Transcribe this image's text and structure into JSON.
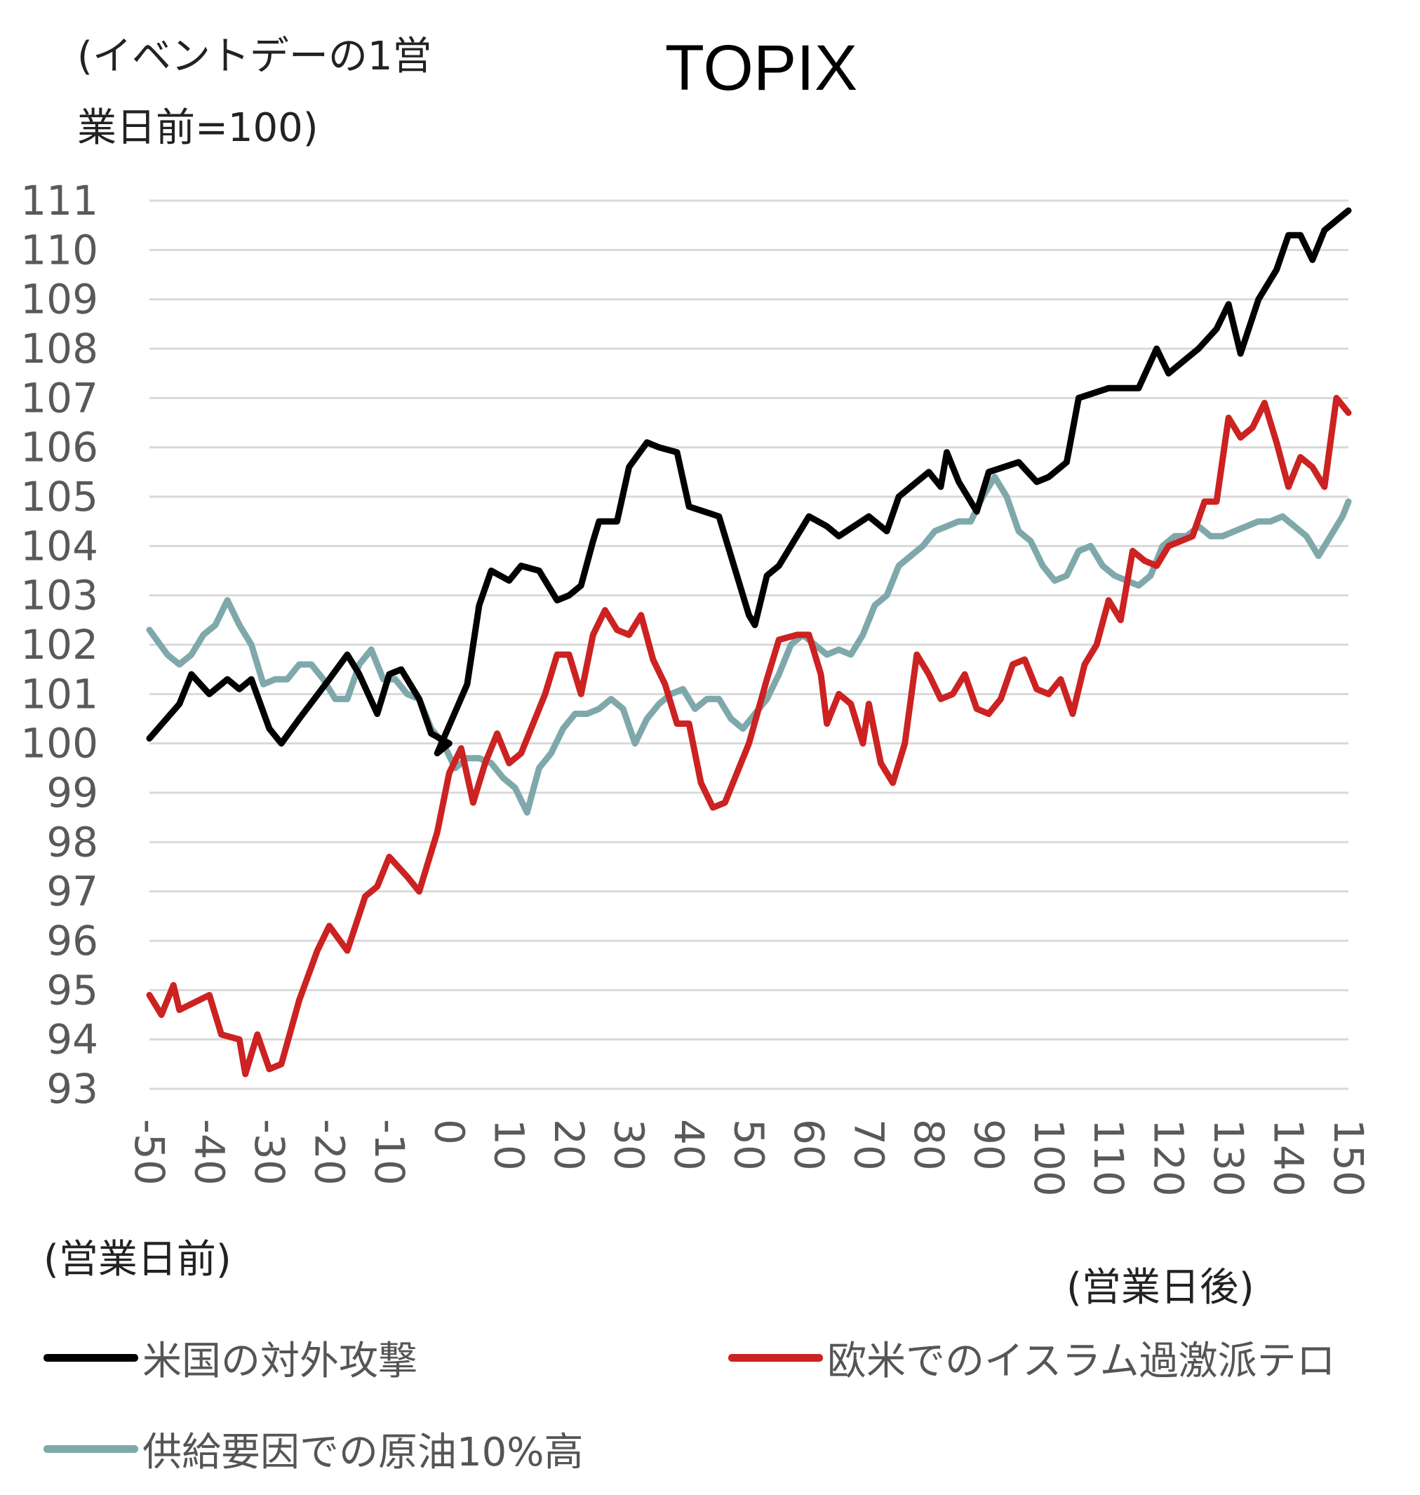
{
  "chart_data": {
    "type": "line",
    "title": "TOPIX",
    "ylabel": "(イベントデーの1営業日前=100)",
    "ylabel_lines": [
      "(イベントデーの1営",
      "業日前=100)"
    ],
    "xlabel_before": "(営業日前)",
    "xlabel_after": "(営業日後)",
    "xlim": [
      -50,
      150
    ],
    "ylim": [
      93,
      111
    ],
    "yticks": [
      111,
      110,
      109,
      108,
      107,
      106,
      105,
      104,
      103,
      102,
      101,
      100,
      99,
      98,
      97,
      96,
      95,
      94,
      93
    ],
    "xticks": [
      -50,
      -40,
      -30,
      -20,
      -10,
      0,
      10,
      20,
      30,
      40,
      50,
      60,
      70,
      80,
      90,
      100,
      110,
      120,
      130,
      140,
      150
    ],
    "grid": true,
    "legend_position": "bottom",
    "series": [
      {
        "name": "米国の対外攻撃",
        "color": "#000000",
        "x": [
          -50,
          -45,
          -43,
          -40,
          -37,
          -35,
          -33,
          -30,
          -28,
          -25,
          -20,
          -17,
          -15,
          -12,
          -10,
          -8,
          -5,
          -3,
          0,
          -2,
          3,
          5,
          7,
          10,
          12,
          15,
          18,
          20,
          22,
          24,
          25,
          28,
          30,
          33,
          35,
          38,
          40,
          45,
          50,
          51,
          53,
          55,
          60,
          63,
          65,
          70,
          73,
          75,
          80,
          82,
          83,
          85,
          88,
          90,
          95,
          98,
          100,
          103,
          105,
          110,
          115,
          118,
          120,
          125,
          128,
          130,
          132,
          135,
          138,
          140,
          142,
          144,
          146,
          150
        ],
        "y": [
          100.1,
          100.8,
          101.4,
          101.0,
          101.3,
          101.1,
          101.3,
          100.3,
          100.0,
          100.5,
          101.3,
          101.8,
          101.4,
          100.6,
          101.4,
          101.5,
          100.9,
          100.2,
          100.0,
          99.8,
          101.2,
          102.8,
          103.5,
          103.3,
          103.6,
          103.5,
          102.9,
          103.0,
          103.2,
          104.1,
          104.5,
          104.5,
          105.6,
          106.1,
          106.0,
          105.9,
          104.8,
          104.6,
          102.6,
          102.4,
          103.4,
          103.6,
          104.6,
          104.4,
          104.2,
          104.6,
          104.3,
          105.0,
          105.5,
          105.2,
          105.9,
          105.3,
          104.7,
          105.5,
          105.7,
          105.3,
          105.4,
          105.7,
          107.0,
          107.2,
          107.2,
          108.0,
          107.5,
          108.0,
          108.4,
          108.9,
          107.9,
          109.0,
          109.6,
          110.3,
          110.3,
          109.8,
          110.4,
          110.8
        ]
      },
      {
        "name": "欧米でのイスラム過激派テロ",
        "color": "#cc2222",
        "x": [
          -50,
          -48,
          -46,
          -45,
          -40,
          -38,
          -35,
          -34,
          -32,
          -30,
          -28,
          -25,
          -22,
          -20,
          -17,
          -14,
          -12,
          -10,
          -7,
          -5,
          -2,
          0,
          2,
          4,
          6,
          8,
          10,
          12,
          14,
          16,
          18,
          20,
          22,
          24,
          26,
          28,
          30,
          32,
          34,
          36,
          38,
          40,
          42,
          44,
          46,
          48,
          50,
          53,
          55,
          58,
          60,
          62,
          63,
          65,
          67,
          69,
          70,
          72,
          74,
          76,
          78,
          80,
          82,
          84,
          86,
          88,
          90,
          92,
          94,
          96,
          98,
          100,
          102,
          104,
          106,
          108,
          110,
          112,
          114,
          116,
          118,
          120,
          122,
          124,
          126,
          128,
          130,
          132,
          134,
          136,
          138,
          140,
          142,
          144,
          146,
          148,
          150
        ],
        "y": [
          94.9,
          94.5,
          95.1,
          94.6,
          94.9,
          94.1,
          94.0,
          93.3,
          94.1,
          93.4,
          93.5,
          94.8,
          95.8,
          96.3,
          95.8,
          96.9,
          97.1,
          97.7,
          97.3,
          97.0,
          98.2,
          99.4,
          99.9,
          98.8,
          99.6,
          100.2,
          99.6,
          99.8,
          100.4,
          101.0,
          101.8,
          101.8,
          101.0,
          102.2,
          102.7,
          102.3,
          102.2,
          102.6,
          101.7,
          101.2,
          100.4,
          100.4,
          99.2,
          98.7,
          98.8,
          99.4,
          100.0,
          101.3,
          102.1,
          102.2,
          102.2,
          101.4,
          100.4,
          101.0,
          100.8,
          100.0,
          100.8,
          99.6,
          99.2,
          100.0,
          101.8,
          101.4,
          100.9,
          101.0,
          101.4,
          100.7,
          100.6,
          100.9,
          101.6,
          101.7,
          101.1,
          101.0,
          101.3,
          100.6,
          101.6,
          102.0,
          102.9,
          102.5,
          103.9,
          103.7,
          103.6,
          104.0,
          104.1,
          104.2,
          104.9,
          104.9,
          106.6,
          106.2,
          106.4,
          106.9,
          106.1,
          105.2,
          105.8,
          105.6,
          105.2,
          107.0,
          106.7
        ]
      },
      {
        "name": "供給要因での原油10%高",
        "color": "#7fa8ab",
        "x": [
          -50,
          -47,
          -45,
          -43,
          -41,
          -39,
          -37,
          -35,
          -33,
          -31,
          -29,
          -27,
          -25,
          -23,
          -21,
          -19,
          -17,
          -15,
          -13,
          -11,
          -9,
          -7,
          -5,
          -3,
          -1,
          1,
          3,
          5,
          7,
          9,
          11,
          13,
          15,
          17,
          19,
          21,
          23,
          25,
          27,
          29,
          31,
          33,
          35,
          37,
          39,
          41,
          43,
          45,
          47,
          49,
          51,
          53,
          55,
          57,
          59,
          61,
          63,
          65,
          67,
          69,
          71,
          73,
          75,
          77,
          79,
          81,
          83,
          85,
          87,
          89,
          91,
          93,
          95,
          97,
          99,
          101,
          103,
          105,
          107,
          109,
          111,
          113,
          115,
          117,
          119,
          121,
          123,
          125,
          127,
          129,
          131,
          133,
          135,
          137,
          139,
          141,
          143,
          145,
          147,
          149,
          150
        ],
        "y": [
          102.3,
          101.8,
          101.6,
          101.8,
          102.2,
          102.4,
          102.9,
          102.4,
          102.0,
          101.2,
          101.3,
          101.3,
          101.6,
          101.6,
          101.3,
          100.9,
          100.9,
          101.6,
          101.9,
          101.3,
          101.3,
          101.0,
          100.9,
          100.3,
          100.0,
          99.5,
          99.7,
          99.7,
          99.6,
          99.3,
          99.1,
          98.6,
          99.5,
          99.8,
          100.3,
          100.6,
          100.6,
          100.7,
          100.9,
          100.7,
          100.0,
          100.5,
          100.8,
          101.0,
          101.1,
          100.7,
          100.9,
          100.9,
          100.5,
          100.3,
          100.6,
          100.9,
          101.4,
          102.0,
          102.2,
          102.0,
          101.8,
          101.9,
          101.8,
          102.2,
          102.8,
          103.0,
          103.6,
          103.8,
          104.0,
          104.3,
          104.4,
          104.5,
          104.5,
          105.0,
          105.4,
          105.0,
          104.3,
          104.1,
          103.6,
          103.3,
          103.4,
          103.9,
          104.0,
          103.6,
          103.4,
          103.3,
          103.2,
          103.4,
          104.0,
          104.2,
          104.2,
          104.4,
          104.2,
          104.2,
          104.3,
          104.4,
          104.5,
          104.5,
          104.6,
          104.4,
          104.2,
          103.8,
          104.2,
          104.6,
          104.9
        ]
      }
    ]
  },
  "colors": {
    "grid": "#d9d9d9",
    "tick_text": "#595959"
  }
}
